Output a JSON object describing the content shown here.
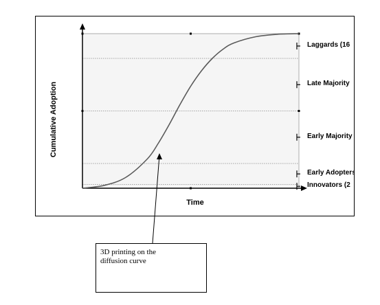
{
  "chart_data": {
    "type": "line",
    "xlabel": "Time",
    "ylabel": "Cumulative Adoption",
    "ylim": [
      0,
      100
    ],
    "grid": "horizontal dotted at segment boundaries",
    "series": [
      {
        "x": [
          0,
          0.1,
          0.2,
          0.3,
          0.35,
          0.4,
          0.45,
          0.5,
          0.55,
          0.6,
          0.65,
          0.7,
          0.8,
          0.9,
          1.0
        ],
        "values": [
          0,
          1.8,
          7,
          19,
          29,
          41,
          54,
          66,
          76,
          84,
          90,
          94,
          98,
          99.6,
          100
        ]
      }
    ],
    "segments": [
      {
        "label": "Laggards (16",
        "upper": 100
      },
      {
        "label": "Late Majority",
        "upper": 84
      },
      {
        "label": "Early Majority",
        "upper": 50
      },
      {
        "label": "Early Adopters",
        "upper": 16
      },
      {
        "label": "Innovators (2",
        "upper": 2.5
      }
    ],
    "gridlines": [
      84,
      50,
      16,
      2.5
    ]
  },
  "callout": {
    "line1": "3D printing on the",
    "line2": "diffusion curve"
  },
  "colors": {
    "curve": "#5a5a5a",
    "plot_bg": "#f5f5f5",
    "grid": "#888888",
    "axis": "#000000"
  }
}
